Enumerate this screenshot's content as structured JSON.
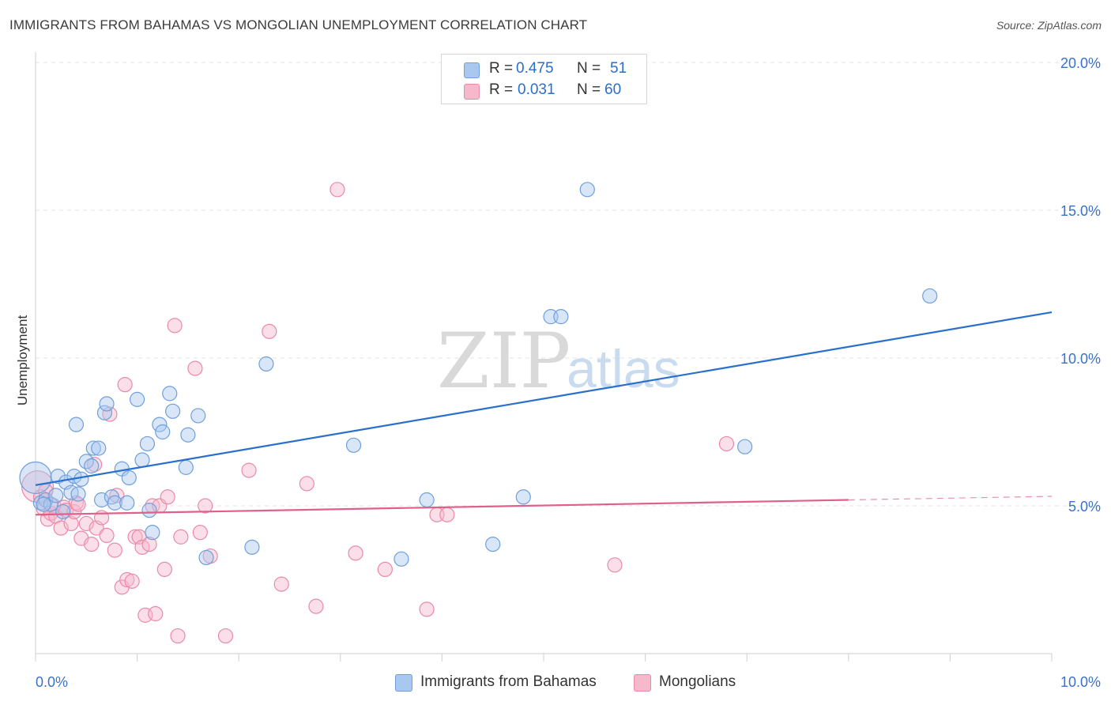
{
  "title": "IMMIGRANTS FROM BAHAMAS VS MONGOLIAN UNEMPLOYMENT CORRELATION CHART",
  "source": "Source: ZipAtlas.com",
  "watermark": {
    "zip": "ZIP",
    "atlas": "atlas"
  },
  "legend": {
    "series1": {
      "r_label": "R = ",
      "r_value": "0.475",
      "n_label": "N = ",
      "n_value": "51"
    },
    "series2": {
      "r_label": "R = ",
      "r_value": "0.031",
      "n_label": "N = ",
      "n_value": "60"
    }
  },
  "bottom_legend": {
    "series1": "Immigrants from Bahamas",
    "series2": "Mongolians"
  },
  "colors": {
    "blue_fill": "#a9c8f0",
    "blue_stroke": "#6f9fdc",
    "blue_line": "#2a6fcc",
    "pink_fill": "#f6b8cb",
    "pink_stroke": "#e98aa8",
    "pink_line": "#e0608a",
    "axis_label": "#3a72c9"
  },
  "chart_data": {
    "type": "scatter",
    "title": "IMMIGRANTS FROM BAHAMAS VS MONGOLIAN UNEMPLOYMENT CORRELATION CHART",
    "xlabel": "",
    "ylabel": "Unemployment",
    "xlim": [
      0,
      10
    ],
    "ylim": [
      0,
      20.5
    ],
    "x_tick_labels": [
      "0.0%",
      "10.0%"
    ],
    "y_ticks": [
      5,
      10,
      15,
      20
    ],
    "y_tick_labels": [
      "5.0%",
      "10.0%",
      "15.0%",
      "20.0%"
    ],
    "grid": true,
    "series": [
      {
        "name": "Immigrants from Bahamas",
        "r": 0.475,
        "n": 51,
        "trend": {
          "x0": 0,
          "y0": 5.7,
          "x1": 10,
          "y1": 11.55
        },
        "points": [
          {
            "x": 0.0,
            "y": 5.95,
            "big": true
          },
          {
            "x": 0.05,
            "y": 5.1
          },
          {
            "x": 0.1,
            "y": 5.2
          },
          {
            "x": 0.15,
            "y": 5.05
          },
          {
            "x": 0.2,
            "y": 5.35
          },
          {
            "x": 0.22,
            "y": 6.0
          },
          {
            "x": 0.27,
            "y": 4.8
          },
          {
            "x": 0.3,
            "y": 5.8
          },
          {
            "x": 0.35,
            "y": 5.45
          },
          {
            "x": 0.38,
            "y": 6.0
          },
          {
            "x": 0.4,
            "y": 7.75
          },
          {
            "x": 0.42,
            "y": 5.4
          },
          {
            "x": 0.45,
            "y": 5.9
          },
          {
            "x": 0.5,
            "y": 6.5
          },
          {
            "x": 0.55,
            "y": 6.35
          },
          {
            "x": 0.57,
            "y": 6.95
          },
          {
            "x": 0.62,
            "y": 6.95
          },
          {
            "x": 0.65,
            "y": 5.2
          },
          {
            "x": 0.68,
            "y": 8.15
          },
          {
            "x": 0.7,
            "y": 8.45
          },
          {
            "x": 0.75,
            "y": 5.3
          },
          {
            "x": 0.78,
            "y": 5.1
          },
          {
            "x": 0.85,
            "y": 6.25
          },
          {
            "x": 0.9,
            "y": 5.1
          },
          {
            "x": 0.92,
            "y": 5.95
          },
          {
            "x": 1.0,
            "y": 8.6
          },
          {
            "x": 1.05,
            "y": 6.55
          },
          {
            "x": 1.1,
            "y": 7.1
          },
          {
            "x": 1.12,
            "y": 4.85
          },
          {
            "x": 1.15,
            "y": 4.1
          },
          {
            "x": 1.22,
            "y": 7.75
          },
          {
            "x": 1.25,
            "y": 7.5
          },
          {
            "x": 1.32,
            "y": 8.8
          },
          {
            "x": 1.35,
            "y": 8.2
          },
          {
            "x": 1.48,
            "y": 6.3
          },
          {
            "x": 1.5,
            "y": 7.4
          },
          {
            "x": 1.6,
            "y": 8.05
          },
          {
            "x": 1.68,
            "y": 3.25
          },
          {
            "x": 2.13,
            "y": 3.6
          },
          {
            "x": 2.27,
            "y": 9.8
          },
          {
            "x": 3.13,
            "y": 7.05
          },
          {
            "x": 3.6,
            "y": 3.2
          },
          {
            "x": 3.85,
            "y": 5.2
          },
          {
            "x": 4.5,
            "y": 3.7
          },
          {
            "x": 4.8,
            "y": 5.3
          },
          {
            "x": 5.07,
            "y": 11.4
          },
          {
            "x": 5.17,
            "y": 11.4
          },
          {
            "x": 5.43,
            "y": 15.7
          },
          {
            "x": 6.98,
            "y": 7.0
          },
          {
            "x": 8.8,
            "y": 12.1
          },
          {
            "x": 0.08,
            "y": 5.05
          }
        ]
      },
      {
        "name": "Mongolians",
        "r": 0.031,
        "n": 60,
        "trend": {
          "x0": 0,
          "y0": 4.7,
          "x1": 8.0,
          "y1": 5.2
        },
        "trend_dashed_to": {
          "x": 10,
          "y": 5.32
        },
        "points": [
          {
            "x": 0.02,
            "y": 5.65,
            "big": true
          },
          {
            "x": 0.05,
            "y": 5.3
          },
          {
            "x": 0.08,
            "y": 4.9
          },
          {
            "x": 0.12,
            "y": 4.55
          },
          {
            "x": 0.15,
            "y": 4.75
          },
          {
            "x": 0.18,
            "y": 5.0
          },
          {
            "x": 0.2,
            "y": 4.65
          },
          {
            "x": 0.25,
            "y": 4.25
          },
          {
            "x": 0.28,
            "y": 4.95
          },
          {
            "x": 0.3,
            "y": 4.85
          },
          {
            "x": 0.35,
            "y": 4.4
          },
          {
            "x": 0.38,
            "y": 4.8
          },
          {
            "x": 0.4,
            "y": 5.1
          },
          {
            "x": 0.42,
            "y": 5.05
          },
          {
            "x": 0.45,
            "y": 3.9
          },
          {
            "x": 0.5,
            "y": 4.4
          },
          {
            "x": 0.55,
            "y": 3.7
          },
          {
            "x": 0.58,
            "y": 6.4
          },
          {
            "x": 0.6,
            "y": 4.25
          },
          {
            "x": 0.65,
            "y": 4.6
          },
          {
            "x": 0.7,
            "y": 4.0
          },
          {
            "x": 0.73,
            "y": 8.1
          },
          {
            "x": 0.78,
            "y": 3.5
          },
          {
            "x": 0.8,
            "y": 5.35
          },
          {
            "x": 0.85,
            "y": 2.25
          },
          {
            "x": 0.88,
            "y": 9.1
          },
          {
            "x": 0.9,
            "y": 2.5
          },
          {
            "x": 0.95,
            "y": 2.45
          },
          {
            "x": 0.98,
            "y": 3.95
          },
          {
            "x": 1.02,
            "y": 3.95
          },
          {
            "x": 1.05,
            "y": 3.6
          },
          {
            "x": 1.08,
            "y": 1.3
          },
          {
            "x": 1.12,
            "y": 3.7
          },
          {
            "x": 1.15,
            "y": 5.0
          },
          {
            "x": 1.18,
            "y": 1.35
          },
          {
            "x": 1.22,
            "y": 5.0
          },
          {
            "x": 1.27,
            "y": 2.85
          },
          {
            "x": 1.3,
            "y": 5.3
          },
          {
            "x": 1.37,
            "y": 11.1
          },
          {
            "x": 1.4,
            "y": 0.6
          },
          {
            "x": 1.43,
            "y": 3.95
          },
          {
            "x": 1.57,
            "y": 9.65
          },
          {
            "x": 1.62,
            "y": 4.1
          },
          {
            "x": 1.67,
            "y": 5.0
          },
          {
            "x": 1.72,
            "y": 3.3
          },
          {
            "x": 1.87,
            "y": 0.6
          },
          {
            "x": 2.1,
            "y": 6.2
          },
          {
            "x": 2.3,
            "y": 10.9
          },
          {
            "x": 2.42,
            "y": 2.35
          },
          {
            "x": 2.67,
            "y": 5.75
          },
          {
            "x": 2.76,
            "y": 1.6
          },
          {
            "x": 2.97,
            "y": 15.7
          },
          {
            "x": 3.15,
            "y": 3.4
          },
          {
            "x": 3.44,
            "y": 2.85
          },
          {
            "x": 3.85,
            "y": 1.5
          },
          {
            "x": 3.95,
            "y": 4.7
          },
          {
            "x": 4.05,
            "y": 4.7
          },
          {
            "x": 5.7,
            "y": 3.0
          },
          {
            "x": 6.8,
            "y": 7.1
          },
          {
            "x": 0.1,
            "y": 5.5
          }
        ]
      }
    ]
  }
}
